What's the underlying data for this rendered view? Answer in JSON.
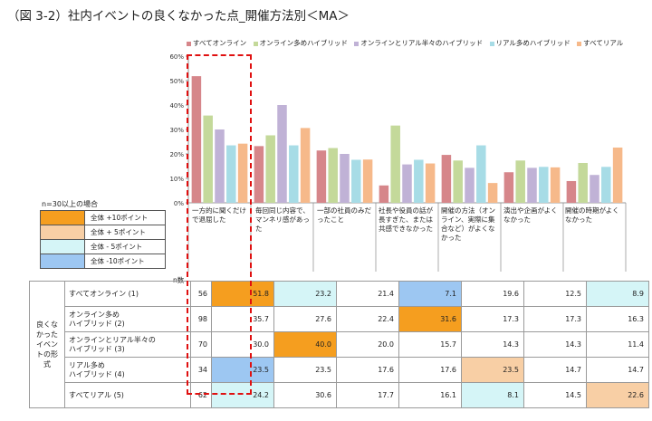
{
  "title": "（図 3-2）社内イベントの良くなかった点_開催方法別＜MA＞",
  "colors": {
    "すべてオンライン": "#d6868a",
    "オンライン多めハイブリッド": "#c4d99a",
    "オンラインとリアル半々のハイブリッド": "#c0b2d6",
    "リアル多めハイブリッド": "#a7dce6",
    "すべてリアル": "#f6b98a",
    "up10": "#f59e1f",
    "up5": "#f8cfa5",
    "down5": "#d5f5f7",
    "down10": "#9dc7f2"
  },
  "chart_data": {
    "type": "bar",
    "title": "社内イベントの良くなかった点_開催方法別＜MA＞",
    "categories": [
      "一方的に聞くだけで退屈した",
      "毎回同じ内容で、マンネリ感があった",
      "一部の社員のみだったこと",
      "社長や役員の話が長すぎた、または共感できなかった",
      "開催の方法（オンライン、実際に集合など）がよくなかった",
      "演出や企画がよくなかった",
      "開催の時期がよくなかった"
    ],
    "series": [
      {
        "name": "すべてオンライン",
        "values": [
          51.8,
          23.2,
          21.4,
          7.1,
          19.6,
          12.5,
          8.9
        ]
      },
      {
        "name": "オンライン多めハイブリッド",
        "values": [
          35.7,
          27.6,
          22.4,
          31.6,
          17.3,
          17.3,
          16.3
        ]
      },
      {
        "name": "オンラインとリアル半々のハイブリッド",
        "values": [
          30.0,
          40.0,
          20.0,
          15.7,
          14.3,
          14.3,
          11.4
        ]
      },
      {
        "name": "リアル多めハイブリッド",
        "values": [
          23.5,
          23.5,
          17.6,
          17.6,
          23.5,
          14.7,
          14.7
        ]
      },
      {
        "name": "すべてリアル",
        "values": [
          24.2,
          30.6,
          17.7,
          16.1,
          8.1,
          14.5,
          22.6
        ]
      }
    ],
    "ylim": [
      0,
      60
    ],
    "yticks": [
      "0%",
      "10%",
      "20%",
      "30%",
      "40%",
      "50%",
      "60%"
    ],
    "legend": [
      "すべてオンライン",
      "オンライン多めハイブリッド",
      "オンラインとリアル半々のハイブリッド",
      "リアル多めハイブリッド",
      "すべてリアル"
    ],
    "legend_position": "top"
  },
  "key": {
    "note": "n=30以上の場合",
    "items": [
      {
        "label": "全体 +10ポイント",
        "color": "up10"
      },
      {
        "label": "全体 + 5ポイント",
        "color": "up5"
      },
      {
        "label": "全体 - 5ポイント",
        "color": "down5"
      },
      {
        "label": "全体 -10ポイント",
        "color": "down10"
      }
    ]
  },
  "table": {
    "side_label": "良くなかったイベントの形式",
    "n_label": "n数",
    "rows": [
      {
        "label": "すべてオンライン (1)",
        "n": "56",
        "values": [
          "51.8",
          "23.2",
          "21.4",
          "7.1",
          "19.6",
          "12.5",
          "8.9"
        ],
        "flags": [
          "up10",
          "down5",
          "",
          "down10",
          "",
          "",
          "down5"
        ]
      },
      {
        "label": "オンライン多め\nハイブリッド (2)",
        "n": "98",
        "values": [
          "35.7",
          "27.6",
          "22.4",
          "31.6",
          "17.3",
          "17.3",
          "16.3"
        ],
        "flags": [
          "",
          "",
          "",
          "up10",
          "",
          "",
          ""
        ]
      },
      {
        "label": "オンラインとリアル半々の\nハイブリッド (3)",
        "n": "70",
        "values": [
          "30.0",
          "40.0",
          "20.0",
          "15.7",
          "14.3",
          "14.3",
          "11.4"
        ],
        "flags": [
          "",
          "up10",
          "",
          "",
          "",
          "",
          ""
        ]
      },
      {
        "label": "リアル多め\nハイブリッド (4)",
        "n": "34",
        "values": [
          "23.5",
          "23.5",
          "17.6",
          "17.6",
          "23.5",
          "14.7",
          "14.7"
        ],
        "flags": [
          "down10",
          "",
          "",
          "",
          "up5",
          "",
          ""
        ]
      },
      {
        "label": "すべてリアル (5)",
        "n": "62",
        "values": [
          "24.2",
          "30.6",
          "17.7",
          "16.1",
          "8.1",
          "14.5",
          "22.6"
        ],
        "flags": [
          "down5",
          "",
          "",
          "",
          "down5",
          "",
          "up5"
        ]
      }
    ]
  }
}
